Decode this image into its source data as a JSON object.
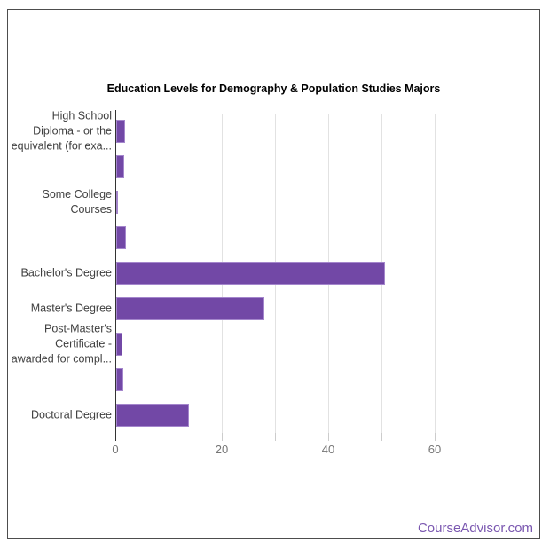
{
  "watermark": {
    "text": "CourseAdvisor.com",
    "color": "#7a57b0"
  },
  "chart_data": {
    "type": "bar",
    "orientation": "horizontal",
    "title": "Education Levels for Demography & Population Studies Majors",
    "xlabel": "",
    "ylabel": "",
    "xlim": [
      0,
      77
    ],
    "xticks": [
      0,
      20,
      40,
      60
    ],
    "gridline_values": [
      10,
      20,
      30,
      40,
      50,
      60
    ],
    "legend": "none",
    "grid": true,
    "bar_color": "#7248a6",
    "axis_color": "#333333",
    "gridline_color": "#e2e2e2",
    "tick_color": "#cccccc",
    "tick_label_color": "#757575",
    "category_label_color": "#3f3f3f",
    "categories": [
      {
        "label": "High School Diploma - or the equivalent (for exa...",
        "display": "High School\nDiploma - or the\nequivalent (for exa...",
        "value": 1.7
      },
      {
        "label": "",
        "display": "",
        "value": 1.5
      },
      {
        "label": "Some College Courses",
        "display": "Some College\nCourses",
        "value": 0.4
      },
      {
        "label": "",
        "display": "",
        "value": 1.9
      },
      {
        "label": "Bachelor's Degree",
        "display": "Bachelor's Degree",
        "value": 50.5
      },
      {
        "label": "Master's Degree",
        "display": "Master's Degree",
        "value": 27.8
      },
      {
        "label": "Post-Master's Certificate - awarded for compl...",
        "display": "Post-Master's\nCertificate -\nawarded for compl...",
        "value": 1.1
      },
      {
        "label": "",
        "display": "",
        "value": 1.4
      },
      {
        "label": "Doctoral Degree",
        "display": "Doctoral Degree",
        "value": 13.7
      }
    ]
  }
}
